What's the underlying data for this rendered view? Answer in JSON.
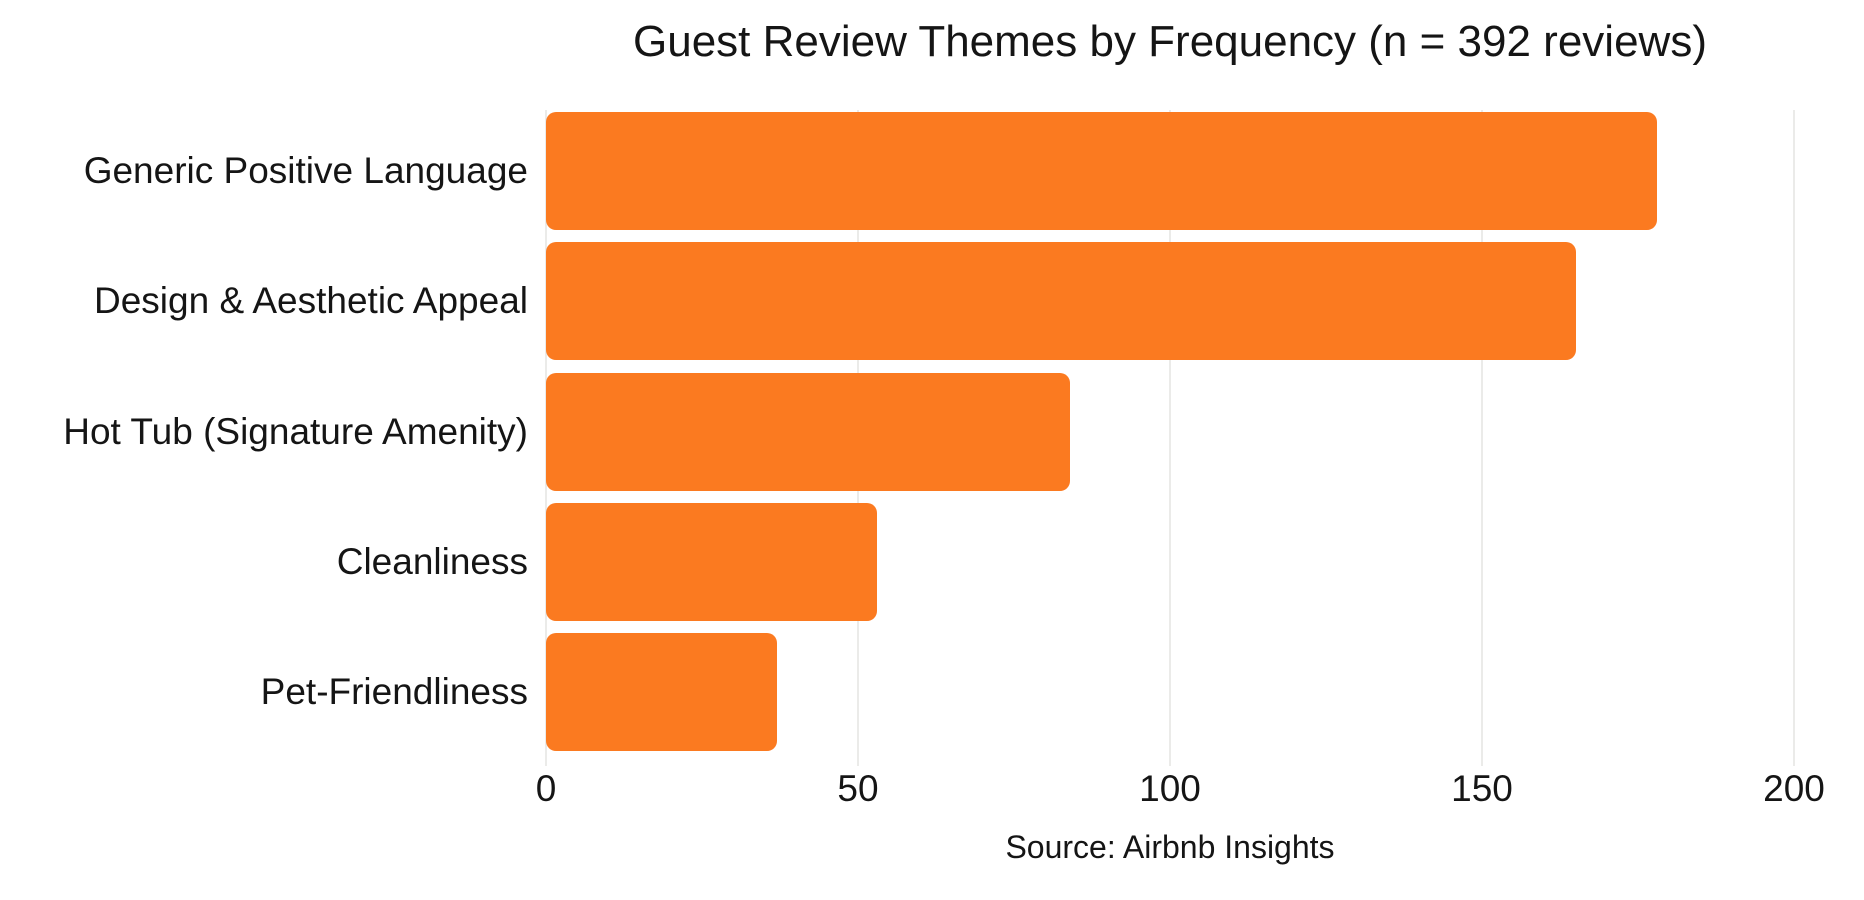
{
  "colors": {
    "bar": "#FB7A20",
    "gridline": "#EBEBE9",
    "text": "#151515",
    "background": "#FFFFFF"
  },
  "chart_data": {
    "type": "bar",
    "orientation": "horizontal",
    "title": "Guest Review Themes by Frequency (n = 392 reviews)",
    "categories": [
      "Generic Positive Language",
      "Design & Aesthetic Appeal",
      "Hot Tub (Signature Amenity)",
      "Cleanliness",
      "Pet-Friendliness"
    ],
    "values": [
      178,
      165,
      84,
      53,
      37
    ],
    "xlabel": "",
    "ylabel": "",
    "xlim": [
      0,
      200
    ],
    "xticks": [
      0,
      50,
      100,
      150,
      200
    ],
    "grid": "vertical",
    "legend": "none",
    "annotation": "Source: Airbnb Insights"
  }
}
